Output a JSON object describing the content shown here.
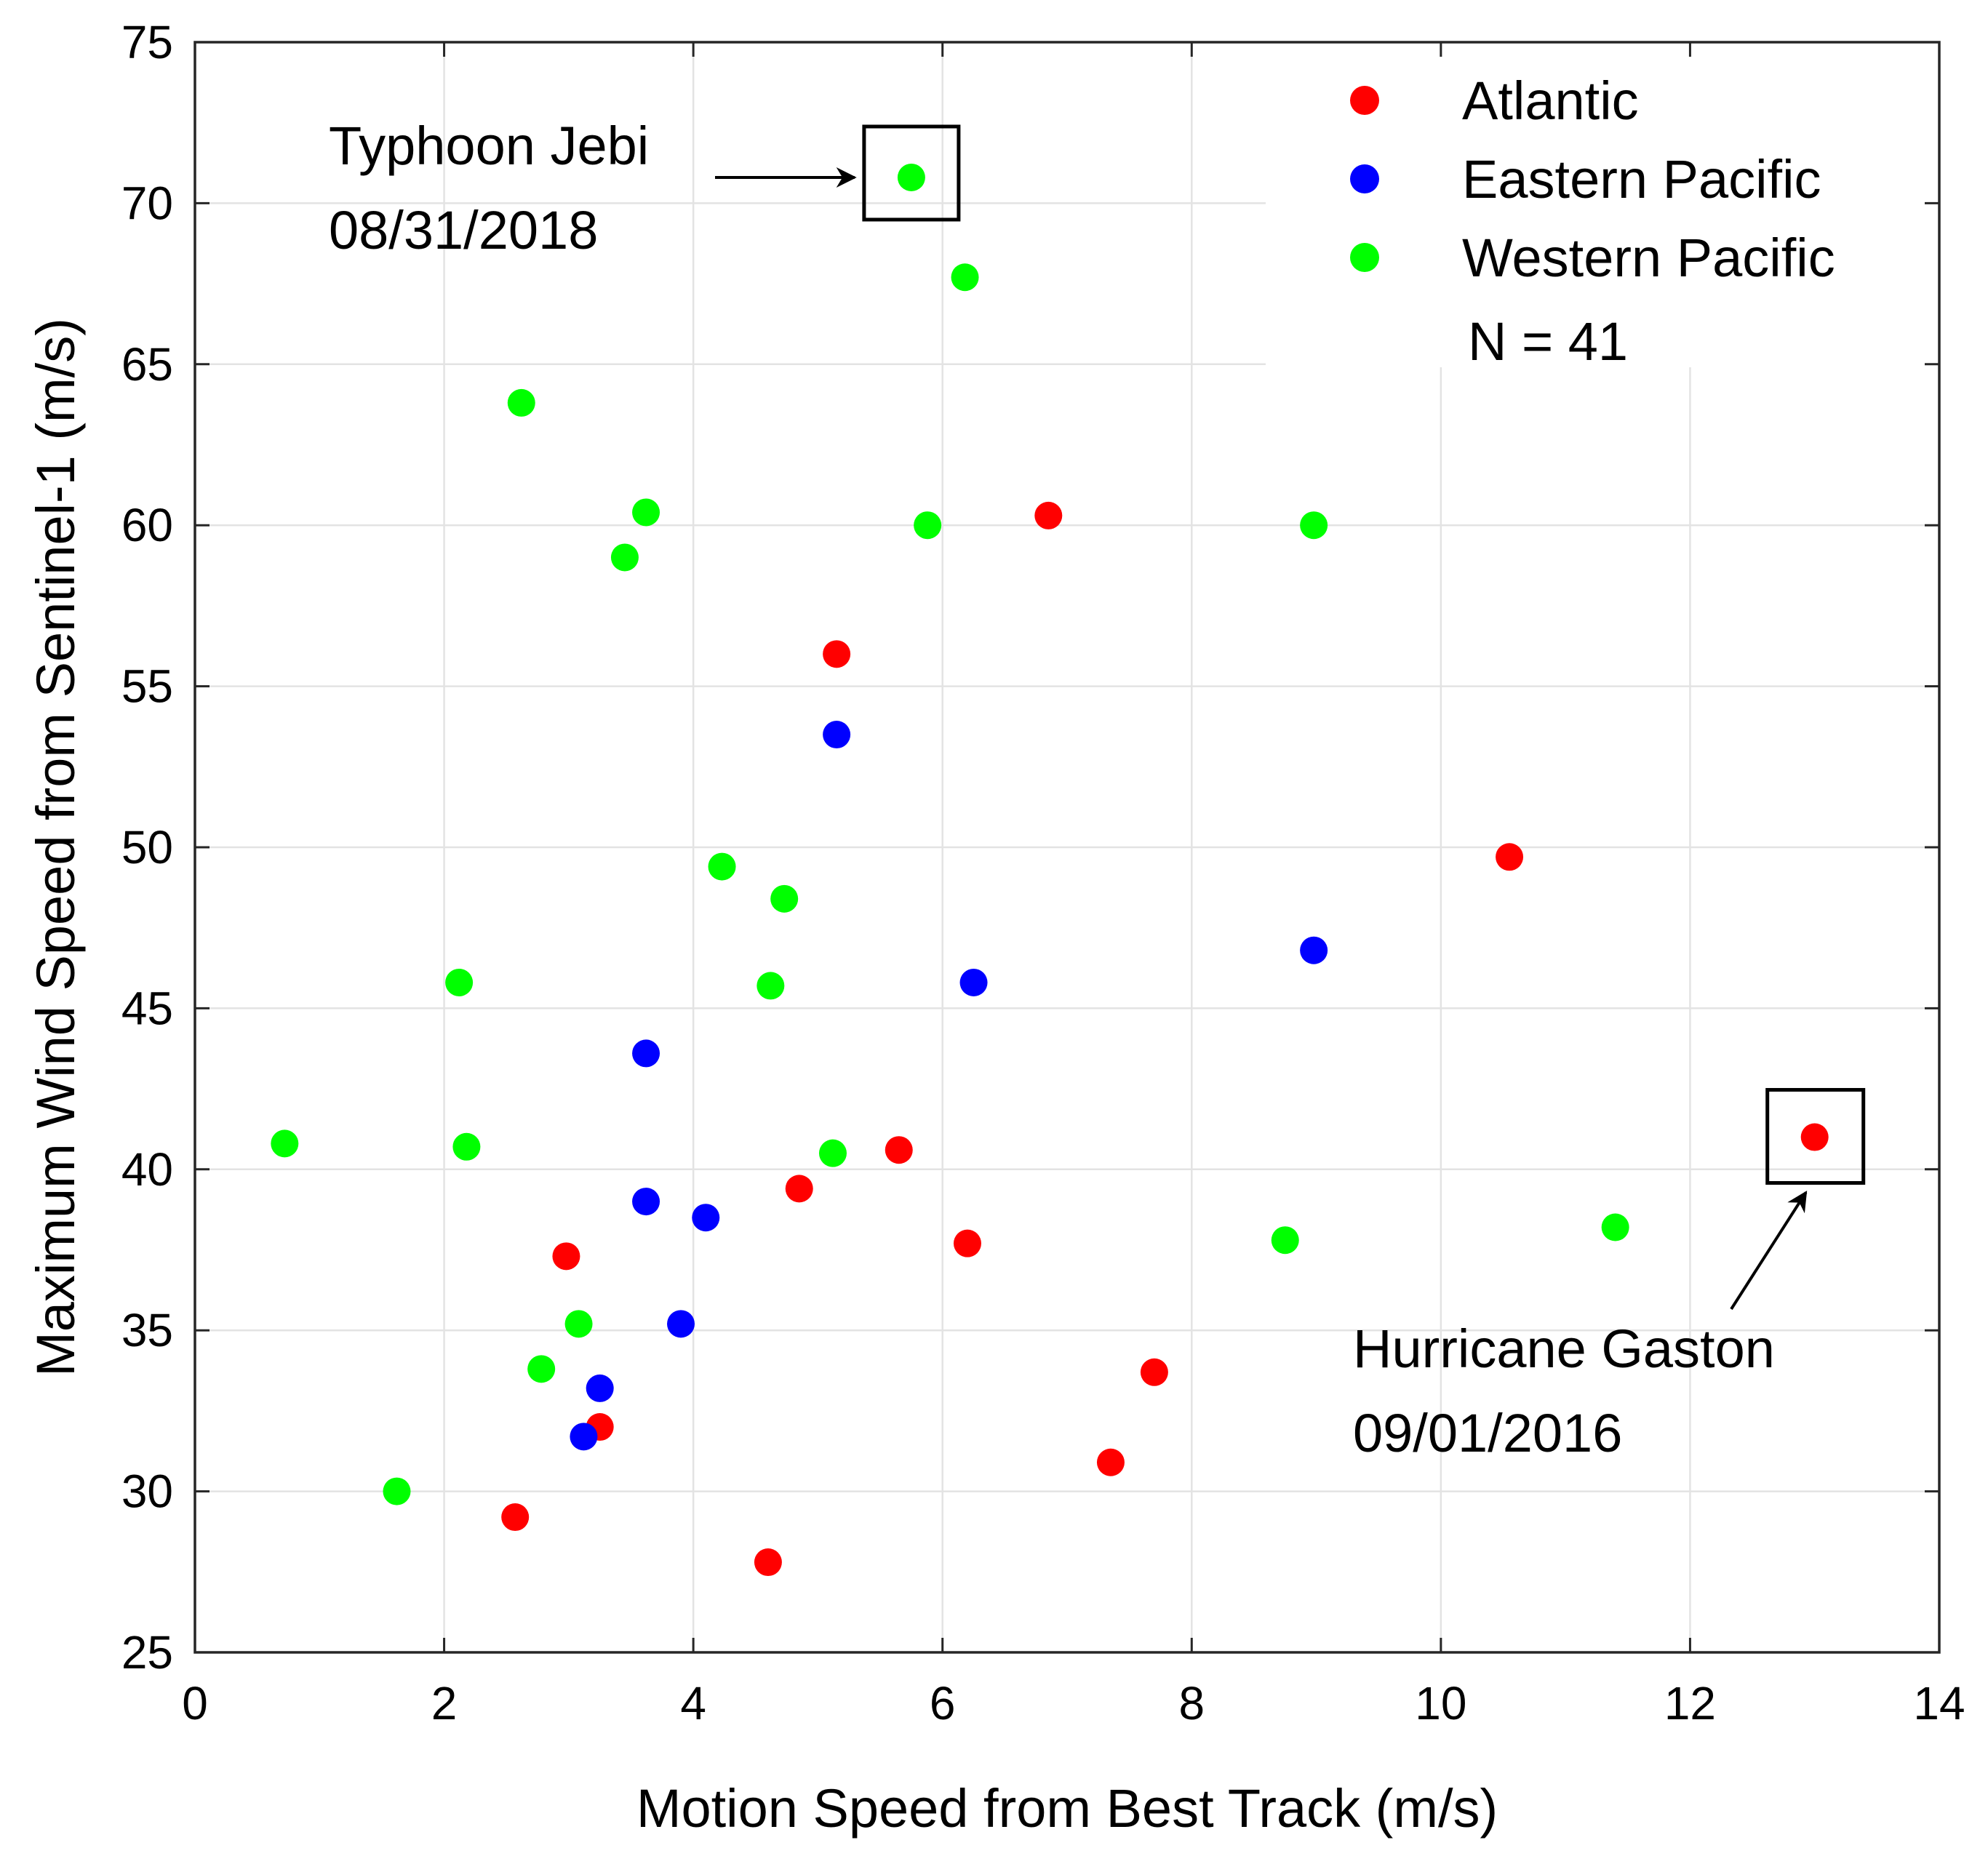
{
  "chart_data": {
    "type": "scatter",
    "title": "",
    "xlabel": "Motion Speed from Best Track (m/s)",
    "ylabel": "Maximum Wind Speed from Sentinel-1 (m/s)",
    "xlim": [
      0,
      14
    ],
    "ylim": [
      25,
      75
    ],
    "xticks": [
      0,
      2,
      4,
      6,
      8,
      10,
      12,
      14
    ],
    "yticks": [
      25,
      30,
      35,
      40,
      45,
      50,
      55,
      60,
      65,
      70,
      75
    ],
    "grid": true,
    "legend_position": "top-right",
    "series": [
      {
        "name": "Atlantic",
        "color": "#ff0000",
        "points": [
          [
            6.85,
            60.3
          ],
          [
            5.15,
            56.0
          ],
          [
            10.55,
            49.7
          ],
          [
            5.65,
            40.6
          ],
          [
            4.85,
            39.4
          ],
          [
            6.2,
            37.7
          ],
          [
            2.98,
            37.3
          ],
          [
            7.7,
            33.7
          ],
          [
            3.25,
            32.0
          ],
          [
            7.35,
            30.9
          ],
          [
            2.57,
            29.2
          ],
          [
            4.6,
            27.8
          ],
          [
            13.0,
            41.0
          ]
        ]
      },
      {
        "name": "Eastern Pacific",
        "color": "#0000ff",
        "points": [
          [
            5.15,
            53.5
          ],
          [
            8.98,
            46.8
          ],
          [
            6.25,
            45.8
          ],
          [
            3.62,
            43.6
          ],
          [
            3.62,
            39.0
          ],
          [
            4.1,
            38.5
          ],
          [
            3.9,
            35.2
          ],
          [
            3.25,
            33.2
          ],
          [
            3.12,
            31.7
          ]
        ]
      },
      {
        "name": "Western Pacific",
        "color": "#00ff00",
        "points": [
          [
            5.75,
            70.8
          ],
          [
            6.18,
            67.7
          ],
          [
            2.62,
            63.8
          ],
          [
            3.62,
            60.4
          ],
          [
            5.88,
            60.0
          ],
          [
            8.98,
            60.0
          ],
          [
            3.45,
            59.0
          ],
          [
            4.23,
            49.4
          ],
          [
            4.73,
            48.4
          ],
          [
            2.12,
            45.8
          ],
          [
            4.62,
            45.7
          ],
          [
            0.72,
            40.8
          ],
          [
            2.18,
            40.7
          ],
          [
            5.12,
            40.5
          ],
          [
            8.75,
            37.8
          ],
          [
            11.4,
            38.2
          ],
          [
            3.08,
            35.2
          ],
          [
            2.78,
            33.8
          ],
          [
            1.62,
            30.0
          ]
        ]
      }
    ],
    "annotations": [
      {
        "lines": [
          "Typhoon Jebi",
          "08/31/2018"
        ],
        "target": [
          5.75,
          70.8
        ]
      },
      {
        "lines": [
          "Hurricane Gaston",
          "09/01/2016"
        ],
        "target": [
          13.0,
          41.0
        ]
      }
    ],
    "legend_note": "N = 41"
  }
}
